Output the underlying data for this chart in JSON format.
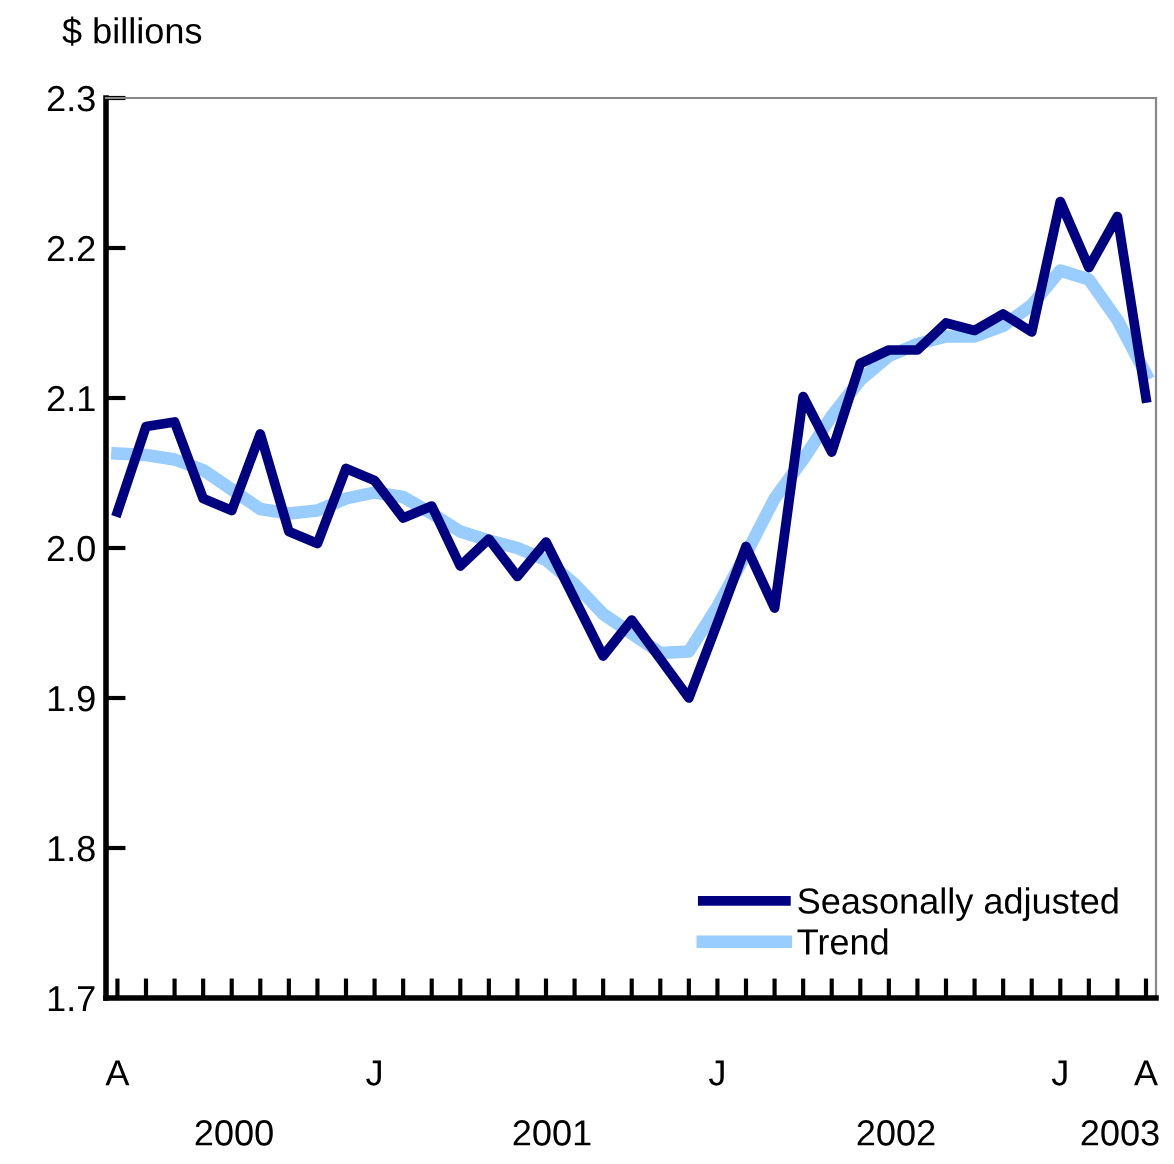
{
  "chart_data": {
    "type": "line",
    "ylabel": "$ billions",
    "categories": [
      "A",
      null,
      null,
      null,
      null,
      null,
      null,
      null,
      null,
      "J",
      null,
      null,
      null,
      null,
      null,
      null,
      null,
      null,
      null,
      null,
      null,
      "J",
      null,
      null,
      null,
      null,
      null,
      null,
      null,
      null,
      null,
      null,
      null,
      "J",
      null,
      null,
      "A"
    ],
    "series": [
      {
        "name": "Seasonally adjusted",
        "color": "#000080",
        "values": [
          2.024,
          2.081,
          2.084,
          2.033,
          2.025,
          2.076,
          2.011,
          2.003,
          2.053,
          2.045,
          2.02,
          2.028,
          1.988,
          2.006,
          1.981,
          2.004,
          1.966,
          1.928,
          1.952,
          1.926,
          1.9,
          1.95,
          2.001,
          1.96,
          2.101,
          2.064,
          2.123,
          2.132,
          2.132,
          2.15,
          2.145,
          2.156,
          2.144,
          2.231,
          2.187,
          2.221,
          2.1
        ]
      },
      {
        "name": "Trend",
        "color": "#99ccff",
        "values": [
          2.063,
          2.062,
          2.059,
          2.052,
          2.039,
          2.026,
          2.023,
          2.025,
          2.033,
          2.037,
          2.034,
          2.023,
          2.011,
          2.005,
          2.0,
          1.992,
          1.976,
          1.956,
          1.943,
          1.93,
          1.931,
          1.961,
          1.996,
          2.033,
          2.059,
          2.088,
          2.112,
          2.128,
          2.136,
          2.141,
          2.141,
          2.148,
          2.162,
          2.185,
          2.179,
          2.152,
          2.116
        ]
      }
    ],
    "ylim": [
      1.7,
      2.3
    ],
    "yticks": [
      {
        "value": 1.7,
        "label": "1.7"
      },
      {
        "value": 1.8,
        "label": "1.8"
      },
      {
        "value": 1.9,
        "label": "1.9"
      },
      {
        "value": 2.0,
        "label": "2.0"
      },
      {
        "value": 2.1,
        "label": "2.1"
      },
      {
        "value": 2.2,
        "label": "2.2"
      },
      {
        "value": 2.3,
        "label": "2.3"
      }
    ],
    "annotations": [
      "2000",
      "2001",
      "2002",
      "2003"
    ],
    "grid": false,
    "legend": "bottom right",
    "marker": "none",
    "line_style": "solid"
  }
}
